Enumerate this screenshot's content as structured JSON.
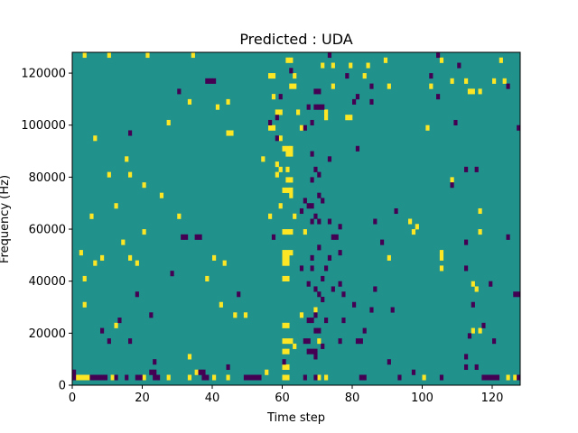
{
  "chart_data": {
    "type": "heatmap",
    "title": "Predicted : UDA",
    "xlabel": "Time step",
    "ylabel": "Frequency (Hz)",
    "xlim": [
      0,
      128
    ],
    "ylim": [
      0,
      128000
    ],
    "x_ticks": [
      0,
      20,
      40,
      60,
      80,
      100,
      120
    ],
    "y_ticks": [
      0,
      20000,
      40000,
      60000,
      80000,
      100000,
      120000
    ],
    "grid": false,
    "colormap": "viridis",
    "colors": {
      "background": "#21918c",
      "high": "#fde725",
      "low": "#440154"
    },
    "n_time": 128,
    "n_freq": 64,
    "freq_bin_hz": 2000,
    "high_cells": [
      [
        1,
        1
      ],
      [
        2,
        1
      ],
      [
        3,
        1
      ],
      [
        4,
        1
      ],
      [
        11,
        1
      ],
      [
        20,
        1
      ],
      [
        27,
        1
      ],
      [
        33,
        1
      ],
      [
        40,
        1
      ],
      [
        44,
        1
      ],
      [
        60,
        1
      ],
      [
        61,
        1
      ],
      [
        70,
        1
      ],
      [
        72,
        1
      ],
      [
        100,
        1
      ],
      [
        124,
        1
      ],
      [
        126,
        1
      ],
      [
        35,
        2
      ],
      [
        55,
        2
      ],
      [
        60,
        3
      ],
      [
        61,
        3
      ],
      [
        33,
        5
      ],
      [
        60,
        6
      ],
      [
        61,
        6
      ],
      [
        63,
        7
      ],
      [
        60,
        8
      ],
      [
        61,
        8
      ],
      [
        62,
        8
      ],
      [
        70,
        8
      ],
      [
        114,
        10
      ],
      [
        116,
        10
      ],
      [
        12,
        11
      ],
      [
        60,
        11
      ],
      [
        61,
        11
      ],
      [
        46,
        13
      ],
      [
        49,
        13
      ],
      [
        65,
        13
      ],
      [
        69,
        14
      ],
      [
        3,
        15
      ],
      [
        42,
        15
      ],
      [
        115,
        18
      ],
      [
        114,
        19
      ],
      [
        3,
        20
      ],
      [
        38,
        20
      ],
      [
        60,
        20
      ],
      [
        61,
        20
      ],
      [
        105,
        22
      ],
      [
        6,
        23
      ],
      [
        18,
        23
      ],
      [
        43,
        23
      ],
      [
        60,
        23
      ],
      [
        61,
        23
      ],
      [
        8,
        24
      ],
      [
        16,
        24
      ],
      [
        40,
        24
      ],
      [
        60,
        24
      ],
      [
        61,
        24
      ],
      [
        90,
        24
      ],
      [
        105,
        24
      ],
      [
        2,
        25
      ],
      [
        60,
        25
      ],
      [
        61,
        25
      ],
      [
        62,
        25
      ],
      [
        105,
        25
      ],
      [
        14,
        27
      ],
      [
        66,
        29
      ],
      [
        20,
        29
      ],
      [
        60,
        29
      ],
      [
        61,
        29
      ],
      [
        62,
        29
      ],
      [
        116,
        29
      ],
      [
        96,
        31
      ],
      [
        98,
        30
      ],
      [
        97,
        29
      ],
      [
        5,
        32
      ],
      [
        30,
        32
      ],
      [
        56,
        32
      ],
      [
        63,
        32
      ],
      [
        116,
        33
      ],
      [
        59,
        34
      ],
      [
        12,
        34
      ],
      [
        62,
        36
      ],
      [
        25,
        36
      ],
      [
        60,
        37
      ],
      [
        61,
        37
      ],
      [
        62,
        37
      ],
      [
        20,
        38
      ],
      [
        61,
        39
      ],
      [
        62,
        39
      ],
      [
        108,
        39
      ],
      [
        10,
        40
      ],
      [
        16,
        40
      ],
      [
        58,
        40
      ],
      [
        59,
        41
      ],
      [
        61,
        41
      ],
      [
        58,
        42
      ],
      [
        15,
        43
      ],
      [
        54,
        43
      ],
      [
        61,
        44
      ],
      [
        62,
        44
      ],
      [
        60,
        45
      ],
      [
        61,
        45
      ],
      [
        62,
        45
      ],
      [
        6,
        47
      ],
      [
        59,
        47
      ],
      [
        44,
        48
      ],
      [
        45,
        48
      ],
      [
        56,
        49
      ],
      [
        57,
        49
      ],
      [
        65,
        49
      ],
      [
        101,
        49
      ],
      [
        27,
        50
      ],
      [
        72,
        51
      ],
      [
        78,
        51
      ],
      [
        79,
        51
      ],
      [
        58,
        52
      ],
      [
        59,
        52
      ],
      [
        64,
        52
      ],
      [
        72,
        52
      ],
      [
        41,
        53
      ],
      [
        33,
        54
      ],
      [
        44,
        54
      ],
      [
        57,
        55
      ],
      [
        113,
        56
      ],
      [
        114,
        56
      ],
      [
        116,
        56
      ],
      [
        62,
        57
      ],
      [
        63,
        57
      ],
      [
        74,
        57
      ],
      [
        90,
        57
      ],
      [
        102,
        57
      ],
      [
        108,
        58
      ],
      [
        112,
        58
      ],
      [
        120,
        58
      ],
      [
        123,
        58
      ],
      [
        56,
        59
      ],
      [
        57,
        59
      ],
      [
        63,
        59
      ],
      [
        83,
        59
      ],
      [
        71,
        61
      ],
      [
        74,
        61
      ],
      [
        79,
        61
      ],
      [
        84,
        61
      ],
      [
        61,
        62
      ],
      [
        62,
        62
      ],
      [
        89,
        62
      ],
      [
        105,
        62
      ],
      [
        122,
        62
      ],
      [
        3,
        63
      ],
      [
        10,
        63
      ],
      [
        21,
        63
      ],
      [
        34,
        63
      ]
    ],
    "low_cells": [
      [
        0,
        1
      ],
      [
        5,
        1
      ],
      [
        6,
        1
      ],
      [
        7,
        1
      ],
      [
        8,
        1
      ],
      [
        9,
        1
      ],
      [
        12,
        1
      ],
      [
        15,
        1
      ],
      [
        18,
        1
      ],
      [
        19,
        1
      ],
      [
        23,
        1
      ],
      [
        24,
        1
      ],
      [
        37,
        1
      ],
      [
        38,
        1
      ],
      [
        49,
        1
      ],
      [
        50,
        1
      ],
      [
        51,
        1
      ],
      [
        52,
        1
      ],
      [
        53,
        1
      ],
      [
        66,
        1
      ],
      [
        69,
        1
      ],
      [
        82,
        1
      ],
      [
        83,
        1
      ],
      [
        93,
        1
      ],
      [
        105,
        1
      ],
      [
        117,
        1
      ],
      [
        118,
        1
      ],
      [
        119,
        1
      ],
      [
        120,
        1
      ],
      [
        121,
        1
      ],
      [
        127,
        1
      ],
      [
        0,
        2
      ],
      [
        22,
        2
      ],
      [
        23,
        2
      ],
      [
        36,
        2
      ],
      [
        37,
        2
      ],
      [
        97,
        2
      ],
      [
        44,
        3
      ],
      [
        115,
        3
      ],
      [
        112,
        3
      ],
      [
        23,
        4
      ],
      [
        60,
        4
      ],
      [
        90,
        4
      ],
      [
        69,
        5
      ],
      [
        112,
        5
      ],
      [
        67,
        6
      ],
      [
        68,
        6
      ],
      [
        69,
        6
      ],
      [
        71,
        7
      ],
      [
        10,
        8
      ],
      [
        16,
        8
      ],
      [
        66,
        8
      ],
      [
        67,
        8
      ],
      [
        76,
        8
      ],
      [
        81,
        8
      ],
      [
        82,
        8
      ],
      [
        120,
        8
      ],
      [
        113,
        9
      ],
      [
        69,
        10
      ],
      [
        70,
        10
      ],
      [
        8,
        10
      ],
      [
        83,
        10
      ],
      [
        117,
        11
      ],
      [
        13,
        12
      ],
      [
        67,
        12
      ],
      [
        68,
        12
      ],
      [
        72,
        12
      ],
      [
        77,
        12
      ],
      [
        22,
        13
      ],
      [
        69,
        13
      ],
      [
        85,
        14
      ],
      [
        91,
        14
      ],
      [
        114,
        15
      ],
      [
        80,
        15
      ],
      [
        71,
        16
      ],
      [
        18,
        17
      ],
      [
        47,
        17
      ],
      [
        70,
        17
      ],
      [
        77,
        17
      ],
      [
        126,
        17
      ],
      [
        127,
        17
      ],
      [
        69,
        18
      ],
      [
        86,
        18
      ],
      [
        74,
        18
      ],
      [
        67,
        19
      ],
      [
        76,
        19
      ],
      [
        119,
        19
      ],
      [
        71,
        20
      ],
      [
        28,
        21
      ],
      [
        65,
        22
      ],
      [
        68,
        22
      ],
      [
        72,
        22
      ],
      [
        112,
        22
      ],
      [
        68,
        24
      ],
      [
        73,
        24
      ],
      [
        76,
        25
      ],
      [
        70,
        26
      ],
      [
        88,
        27
      ],
      [
        112,
        27
      ],
      [
        35,
        28
      ],
      [
        36,
        28
      ],
      [
        31,
        28
      ],
      [
        32,
        28
      ],
      [
        74,
        28
      ],
      [
        75,
        28
      ],
      [
        57,
        28
      ],
      [
        124,
        28
      ],
      [
        68,
        31
      ],
      [
        76,
        30
      ],
      [
        86,
        31
      ],
      [
        65,
        33
      ],
      [
        92,
        33
      ],
      [
        73,
        31
      ],
      [
        69,
        32
      ],
      [
        70,
        31
      ],
      [
        67,
        34
      ],
      [
        68,
        34
      ],
      [
        71,
        35
      ],
      [
        66,
        35
      ],
      [
        70,
        36
      ],
      [
        108,
        38
      ],
      [
        68,
        39
      ],
      [
        70,
        40
      ],
      [
        69,
        41
      ],
      [
        112,
        41
      ],
      [
        115,
        41
      ],
      [
        73,
        43
      ],
      [
        68,
        44
      ],
      [
        81,
        45
      ],
      [
        58,
        47
      ],
      [
        16,
        48
      ],
      [
        66,
        49
      ],
      [
        127,
        49
      ],
      [
        56,
        50
      ],
      [
        58,
        51
      ],
      [
        68,
        50
      ],
      [
        109,
        50
      ],
      [
        67,
        53
      ],
      [
        69,
        53
      ],
      [
        70,
        53
      ],
      [
        71,
        53
      ],
      [
        80,
        54
      ],
      [
        85,
        54
      ],
      [
        81,
        55
      ],
      [
        104,
        55
      ],
      [
        30,
        56
      ],
      [
        59,
        55
      ],
      [
        69,
        56
      ],
      [
        70,
        56
      ],
      [
        124,
        57
      ],
      [
        85,
        57
      ],
      [
        73,
        63
      ],
      [
        104,
        63
      ],
      [
        110,
        61
      ],
      [
        102,
        59
      ],
      [
        38,
        58
      ],
      [
        39,
        58
      ],
      [
        40,
        58
      ],
      [
        78,
        59
      ],
      [
        62,
        60
      ]
    ]
  }
}
